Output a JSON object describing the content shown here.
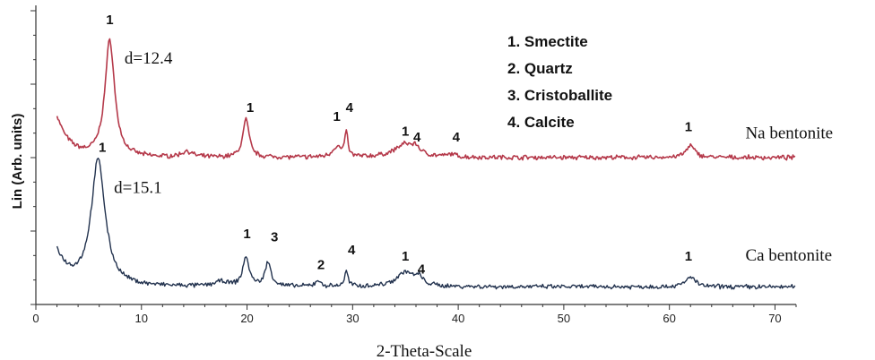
{
  "chart_data": {
    "type": "line",
    "xlabel": "2-Theta-Scale",
    "ylabel": "Lin (Arb. units)",
    "xlim": [
      0,
      72
    ],
    "x_ticks": [
      "0",
      "10",
      "20",
      "30",
      "40",
      "50",
      "60",
      "70"
    ],
    "x_tick_values": [
      0,
      10,
      20,
      30,
      40,
      50,
      60,
      70
    ],
    "legend": [
      "1. Smectite",
      "2. Quartz",
      "3. Cristoballite",
      "4. Calcite"
    ],
    "series": [
      {
        "name": "Na bentonite",
        "color": "#b5394a",
        "offset": 0.5,
        "peaks": [
          {
            "x": 7.0,
            "h": 0.4,
            "w": 0.55
          },
          {
            "x": 14.3,
            "h": 0.02,
            "w": 0.6
          },
          {
            "x": 19.9,
            "h": 0.13,
            "w": 0.35
          },
          {
            "x": 28.5,
            "h": 0.035,
            "w": 0.5
          },
          {
            "x": 29.4,
            "h": 0.09,
            "w": 0.15
          },
          {
            "x": 35.0,
            "h": 0.045,
            "w": 1.2
          },
          {
            "x": 36.0,
            "h": 0.02,
            "w": 0.4
          },
          {
            "x": 39.4,
            "h": 0.01,
            "w": 0.4
          },
          {
            "x": 62.0,
            "h": 0.04,
            "w": 0.5
          }
        ],
        "start_bump": 0.14,
        "annotations": [
          {
            "text": "1",
            "x": 7.0,
            "y": 0.955
          },
          {
            "text": "1",
            "x": 20.3,
            "y": 0.655
          },
          {
            "text": "1",
            "x": 28.5,
            "y": 0.625
          },
          {
            "text": "4",
            "x": 29.7,
            "y": 0.655
          },
          {
            "text": "1",
            "x": 35.0,
            "y": 0.575
          },
          {
            "text": "4",
            "x": 36.1,
            "y": 0.555
          },
          {
            "text": "4",
            "x": 39.8,
            "y": 0.555
          },
          {
            "text": "1",
            "x": 61.8,
            "y": 0.59
          }
        ],
        "d_label": "d=12.4",
        "d_label_pos": {
          "x": 8.4,
          "y": 0.82
        },
        "label_pos": {
          "x": 67.2,
          "y": 0.565
        }
      },
      {
        "name": "Ca bentonite",
        "color": "#22324e",
        "offset": 0.06,
        "peaks": [
          {
            "x": 5.9,
            "h": 0.43,
            "w": 0.8
          },
          {
            "x": 17.5,
            "h": 0.015,
            "w": 0.8
          },
          {
            "x": 19.9,
            "h": 0.1,
            "w": 0.35
          },
          {
            "x": 22.0,
            "h": 0.08,
            "w": 0.35
          },
          {
            "x": 26.7,
            "h": 0.02,
            "w": 0.3
          },
          {
            "x": 29.4,
            "h": 0.05,
            "w": 0.2
          },
          {
            "x": 35.0,
            "h": 0.05,
            "w": 1.0
          },
          {
            "x": 36.3,
            "h": 0.025,
            "w": 0.4
          },
          {
            "x": 62.0,
            "h": 0.035,
            "w": 0.5
          }
        ],
        "start_bump": 0.12,
        "annotations": [
          {
            "text": "1",
            "x": 6.3,
            "y": 0.52
          },
          {
            "text": "1",
            "x": 20.0,
            "y": 0.225
          },
          {
            "text": "3",
            "x": 22.6,
            "y": 0.215
          },
          {
            "text": "2",
            "x": 27.0,
            "y": 0.12
          },
          {
            "text": "4",
            "x": 29.9,
            "y": 0.17
          },
          {
            "text": "1",
            "x": 35.0,
            "y": 0.15
          },
          {
            "text": "4",
            "x": 36.5,
            "y": 0.105
          },
          {
            "text": "1",
            "x": 61.8,
            "y": 0.15
          }
        ],
        "d_label": "d=15.1",
        "d_label_pos": {
          "x": 7.4,
          "y": 0.38
        },
        "label_pos": {
          "x": 67.2,
          "y": 0.15
        }
      }
    ]
  }
}
